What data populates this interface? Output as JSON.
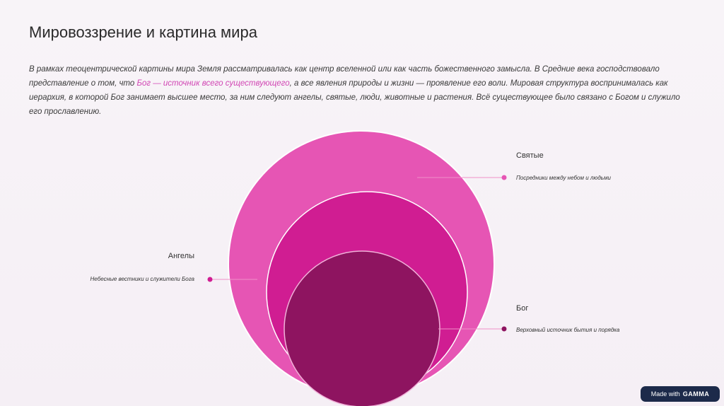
{
  "page": {
    "title": "Мировоззрение и картина мира",
    "intro_before_link": "В рамках теоцентрической картины мира Земля рассматривалась как центр вселенной или как часть божественного замысла. В Средние века господствовало представление о том, что ",
    "intro_link": "Бог — источник всего существующего",
    "intro_after_link": ", а все явления природы и жизни — проявление его воли. Мировая структура воспринималась как иерархия, в которой Бог занимает высшее место, за ним следуют ангелы, святые, люди, животные и растения. Всё существующее было связано с Богом и служило его прославлению."
  },
  "diagram": {
    "layers": [
      {
        "key": "saints",
        "title": "Святые",
        "description": "Посредники между небом и людьми",
        "color": "#e655b4"
      },
      {
        "key": "angels",
        "title": "Ангелы",
        "description": "Небесные вестники и служители Бога",
        "color": "#d01d92"
      },
      {
        "key": "god",
        "title": "Бог",
        "description": "Верховный источник бытия и порядка",
        "color": "#8e1460"
      }
    ]
  },
  "badge": {
    "made_with": "Made with",
    "brand": "GAMMA"
  },
  "colors": {
    "text": "#2a2a2a",
    "link": "#d146b4",
    "badge_bg": "#1c2a4a"
  }
}
